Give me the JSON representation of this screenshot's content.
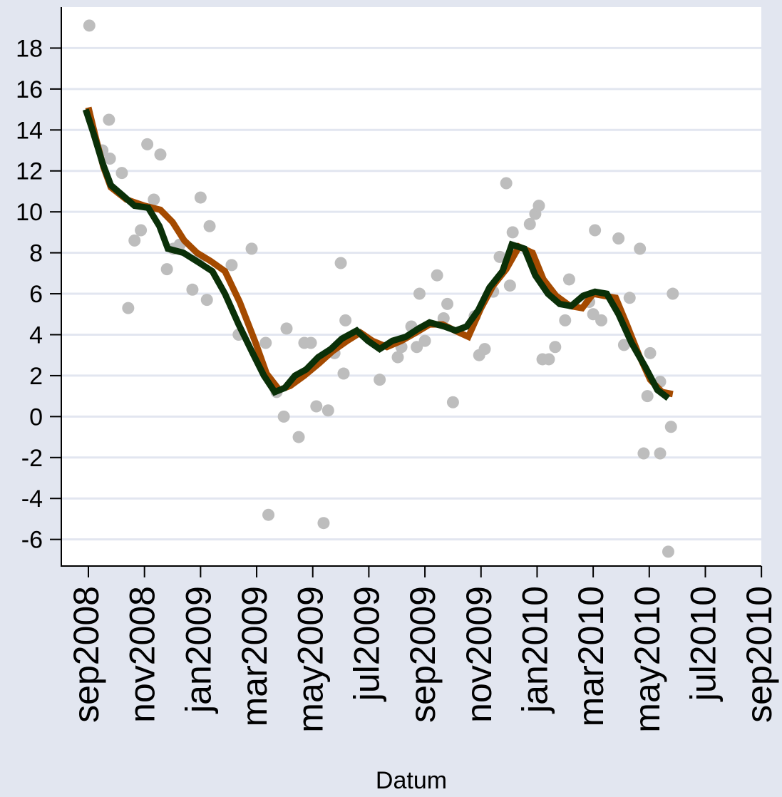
{
  "chart_data": {
    "type": "line",
    "title": "",
    "xlabel": "Datum",
    "ylabel": "",
    "x_unit": "month",
    "xlim": [
      "2008-08",
      "2010-09"
    ],
    "ylim": [
      -7.3,
      20
    ],
    "y_ticks": [
      -6,
      -4,
      -2,
      0,
      2,
      4,
      6,
      8,
      10,
      12,
      14,
      16,
      18
    ],
    "y_tick_labels": [
      "-6",
      "-4",
      "-2",
      "0",
      "2",
      "4",
      "6",
      "8",
      "10",
      "12",
      "14",
      "16",
      "18"
    ],
    "x_ticks": [
      "2008-09",
      "2008-11",
      "2009-01",
      "2009-03",
      "2009-05",
      "2009-07",
      "2009-09",
      "2009-11",
      "2010-01",
      "2010-03",
      "2010-05",
      "2010-07",
      "2010-09"
    ],
    "x_tick_labels": [
      "sep2008",
      "nov2008",
      "jan2009",
      "mar2009",
      "may2009",
      "jul2009",
      "sep2009",
      "nov2009",
      "jan2010",
      "mar2010",
      "may2010",
      "jul2010",
      "sep2010"
    ],
    "grid": "horizontal",
    "legend": "none",
    "colors": {
      "background": "#e2e6f0",
      "plot_background": "#ffffff",
      "gridline": "#e2e6f0",
      "points": "#bdbdbd",
      "series_1": "#a44a00",
      "series_2": "#0a3008"
    },
    "scatter": [
      [
        "2008-09-02",
        19.1
      ],
      [
        "2008-09-16",
        13.0
      ],
      [
        "2008-09-23",
        14.5
      ],
      [
        "2008-09-24",
        12.6
      ],
      [
        "2008-10-07",
        11.9
      ],
      [
        "2008-10-14",
        5.3
      ],
      [
        "2008-10-21",
        8.6
      ],
      [
        "2008-10-28",
        9.1
      ],
      [
        "2008-11-04",
        13.3
      ],
      [
        "2008-11-11",
        10.6
      ],
      [
        "2008-11-18",
        12.8
      ],
      [
        "2008-11-25",
        7.2
      ],
      [
        "2008-12-02",
        8.2
      ],
      [
        "2008-12-09",
        8.4
      ],
      [
        "2008-12-23",
        6.2
      ],
      [
        "2008-12-30",
        7.7
      ],
      [
        "2009-01-01",
        10.7
      ],
      [
        "2009-01-08",
        5.7
      ],
      [
        "2009-01-11",
        9.3
      ],
      [
        "2009-02-04",
        7.4
      ],
      [
        "2009-02-11",
        4.0
      ],
      [
        "2009-02-24",
        8.2
      ],
      [
        "2009-03-11",
        3.6
      ],
      [
        "2009-03-14",
        -4.8
      ],
      [
        "2009-03-23",
        1.2
      ],
      [
        "2009-03-31",
        0.0
      ],
      [
        "2009-04-03",
        4.3
      ],
      [
        "2009-04-16",
        -1.0
      ],
      [
        "2009-04-22",
        3.6
      ],
      [
        "2009-04-29",
        3.6
      ],
      [
        "2009-05-05",
        0.5
      ],
      [
        "2009-05-13",
        -5.2
      ],
      [
        "2009-05-18",
        0.3
      ],
      [
        "2009-05-25",
        3.1
      ],
      [
        "2009-06-01",
        7.5
      ],
      [
        "2009-06-04",
        2.1
      ],
      [
        "2009-06-06",
        4.7
      ],
      [
        "2009-07-13",
        1.8
      ],
      [
        "2009-08-02",
        2.9
      ],
      [
        "2009-08-06",
        3.4
      ],
      [
        "2009-08-17",
        4.4
      ],
      [
        "2009-08-23",
        3.4
      ],
      [
        "2009-08-26",
        6.0
      ],
      [
        "2009-09-01",
        3.7
      ],
      [
        "2009-09-14",
        6.9
      ],
      [
        "2009-09-21",
        4.8
      ],
      [
        "2009-09-25",
        5.5
      ],
      [
        "2009-10-01",
        0.7
      ],
      [
        "2009-10-25",
        4.9
      ],
      [
        "2009-10-30",
        3.0
      ],
      [
        "2009-11-05",
        3.3
      ],
      [
        "2009-11-14",
        6.1
      ],
      [
        "2009-11-21",
        7.8
      ],
      [
        "2009-11-28",
        11.4
      ],
      [
        "2009-12-02",
        6.4
      ],
      [
        "2009-12-05",
        9.0
      ],
      [
        "2009-12-24",
        9.4
      ],
      [
        "2009-12-30",
        9.9
      ],
      [
        "2010-01-03",
        10.3
      ],
      [
        "2010-01-07",
        2.8
      ],
      [
        "2010-01-14",
        2.8
      ],
      [
        "2010-01-21",
        3.4
      ],
      [
        "2010-02-01",
        4.7
      ],
      [
        "2010-02-05",
        6.7
      ],
      [
        "2010-02-25",
        5.6
      ],
      [
        "2010-03-01",
        5.0
      ],
      [
        "2010-03-03",
        9.1
      ],
      [
        "2010-03-10",
        4.7
      ],
      [
        "2010-03-29",
        8.7
      ],
      [
        "2010-04-04",
        3.5
      ],
      [
        "2010-04-10",
        5.8
      ],
      [
        "2010-04-21",
        8.2
      ],
      [
        "2010-04-25",
        -1.8
      ],
      [
        "2010-04-29",
        1.0
      ],
      [
        "2010-05-02",
        3.1
      ],
      [
        "2010-05-13",
        1.7
      ],
      [
        "2010-05-13",
        -1.8
      ],
      [
        "2010-05-22",
        -6.6
      ],
      [
        "2010-05-25",
        -0.5
      ],
      [
        "2010-05-27",
        6.0
      ]
    ],
    "series": [
      {
        "color": "#a44a00",
        "points": [
          [
            "2008-09-01",
            15.1
          ],
          [
            "2008-09-09",
            13.6
          ],
          [
            "2008-09-17",
            12.2
          ],
          [
            "2008-09-25",
            11.2
          ],
          [
            "2008-10-12",
            10.6
          ],
          [
            "2008-11-01",
            10.3
          ],
          [
            "2008-11-18",
            10.1
          ],
          [
            "2008-12-01",
            9.5
          ],
          [
            "2008-12-14",
            8.6
          ],
          [
            "2008-12-28",
            8.0
          ],
          [
            "2009-01-12",
            7.6
          ],
          [
            "2009-01-28",
            7.1
          ],
          [
            "2009-02-12",
            5.6
          ],
          [
            "2009-02-28",
            3.6
          ],
          [
            "2009-03-12",
            2.1
          ],
          [
            "2009-03-26",
            1.3
          ],
          [
            "2009-04-07",
            1.5
          ],
          [
            "2009-04-22",
            2.0
          ],
          [
            "2009-05-08",
            2.6
          ],
          [
            "2009-05-23",
            3.2
          ],
          [
            "2009-06-08",
            3.7
          ],
          [
            "2009-06-22",
            4.1
          ],
          [
            "2009-07-05",
            3.7
          ],
          [
            "2009-07-21",
            3.4
          ],
          [
            "2009-08-06",
            3.7
          ],
          [
            "2009-08-22",
            4.1
          ],
          [
            "2009-09-06",
            4.5
          ],
          [
            "2009-09-20",
            4.5
          ],
          [
            "2009-10-03",
            4.2
          ],
          [
            "2009-10-18",
            3.9
          ],
          [
            "2009-11-01",
            5.3
          ],
          [
            "2009-11-14",
            6.4
          ],
          [
            "2009-11-28",
            7.2
          ],
          [
            "2009-12-12",
            8.3
          ],
          [
            "2009-12-27",
            8.0
          ],
          [
            "2010-01-08",
            6.7
          ],
          [
            "2010-01-22",
            5.9
          ],
          [
            "2010-02-06",
            5.4
          ],
          [
            "2010-02-18",
            5.3
          ],
          [
            "2010-03-01",
            6.0
          ],
          [
            "2010-03-13",
            5.9
          ],
          [
            "2010-03-26",
            5.8
          ],
          [
            "2010-04-07",
            4.5
          ],
          [
            "2010-04-20",
            3.0
          ],
          [
            "2010-05-02",
            1.8
          ],
          [
            "2010-05-15",
            1.2
          ],
          [
            "2010-05-27",
            1.1
          ]
        ]
      },
      {
        "color": "#0a3008",
        "points": [
          [
            "2008-08-29",
            15.0
          ],
          [
            "2008-09-06",
            13.9
          ],
          [
            "2008-09-16",
            12.4
          ],
          [
            "2008-09-25",
            11.3
          ],
          [
            "2008-10-08",
            10.8
          ],
          [
            "2008-10-21",
            10.3
          ],
          [
            "2008-11-05",
            10.2
          ],
          [
            "2008-11-17",
            9.3
          ],
          [
            "2008-11-26",
            8.2
          ],
          [
            "2008-12-13",
            8.0
          ],
          [
            "2008-12-31",
            7.5
          ],
          [
            "2009-01-14",
            7.1
          ],
          [
            "2009-01-28",
            6.0
          ],
          [
            "2009-02-11",
            4.5
          ],
          [
            "2009-02-25",
            3.1
          ],
          [
            "2009-03-09",
            2.0
          ],
          [
            "2009-03-21",
            1.2
          ],
          [
            "2009-04-01",
            1.4
          ],
          [
            "2009-04-12",
            2.0
          ],
          [
            "2009-04-24",
            2.3
          ],
          [
            "2009-05-07",
            2.9
          ],
          [
            "2009-05-21",
            3.3
          ],
          [
            "2009-06-02",
            3.8
          ],
          [
            "2009-06-18",
            4.2
          ],
          [
            "2009-06-30",
            3.7
          ],
          [
            "2009-07-13",
            3.3
          ],
          [
            "2009-07-27",
            3.7
          ],
          [
            "2009-08-11",
            3.9
          ],
          [
            "2009-08-25",
            4.3
          ],
          [
            "2009-09-06",
            4.6
          ],
          [
            "2009-09-22",
            4.4
          ],
          [
            "2009-10-04",
            4.2
          ],
          [
            "2009-10-16",
            4.4
          ],
          [
            "2009-10-29",
            5.2
          ],
          [
            "2009-11-10",
            6.3
          ],
          [
            "2009-11-24",
            7.1
          ],
          [
            "2009-12-04",
            8.4
          ],
          [
            "2009-12-18",
            8.2
          ],
          [
            "2009-12-30",
            6.9
          ],
          [
            "2010-01-13",
            6.0
          ],
          [
            "2010-01-26",
            5.5
          ],
          [
            "2010-02-07",
            5.4
          ],
          [
            "2010-02-19",
            5.9
          ],
          [
            "2010-03-03",
            6.1
          ],
          [
            "2010-03-16",
            6.0
          ],
          [
            "2010-03-29",
            5.0
          ],
          [
            "2010-04-12",
            3.6
          ],
          [
            "2010-04-27",
            2.4
          ],
          [
            "2010-05-10",
            1.3
          ],
          [
            "2010-05-22",
            0.9
          ]
        ]
      }
    ]
  }
}
